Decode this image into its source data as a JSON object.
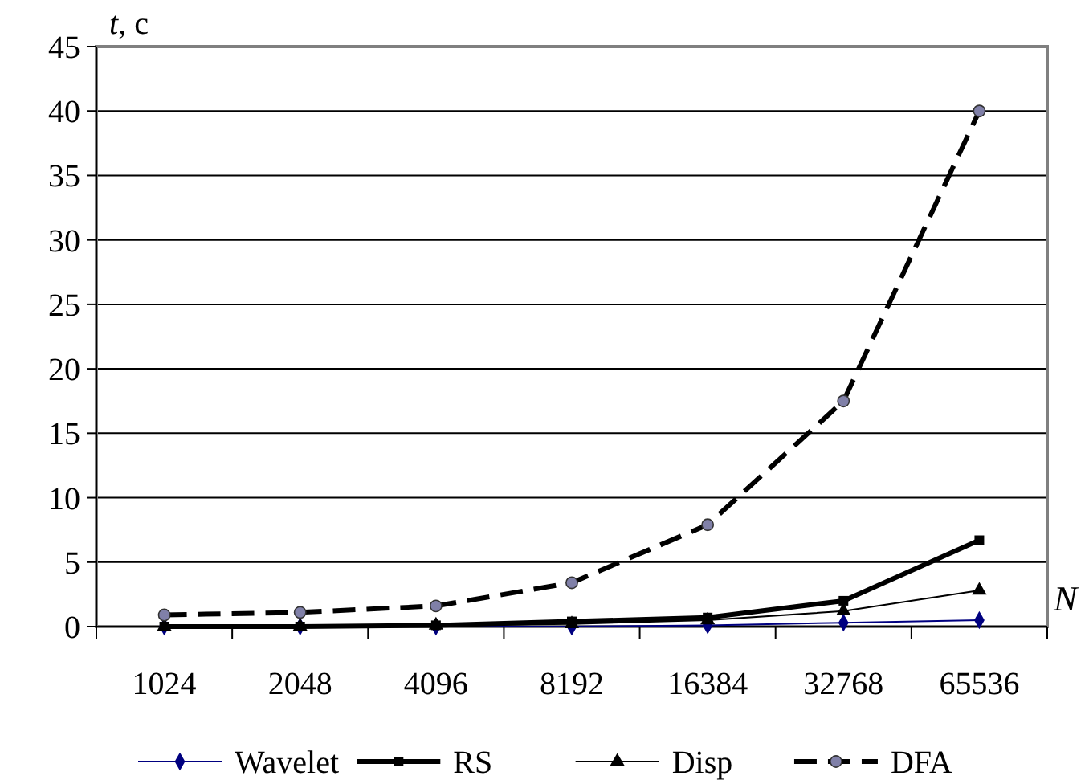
{
  "chart_data": {
    "type": "line",
    "ylabel": "t, c",
    "xlabel": "N",
    "categories": [
      "1024",
      "2048",
      "4096",
      "8192",
      "16384",
      "32768",
      "65536"
    ],
    "ylim": [
      0,
      45
    ],
    "yticks": [
      0,
      5,
      10,
      15,
      20,
      25,
      30,
      35,
      40,
      45
    ],
    "grid": "y",
    "legend": "bottom",
    "series": [
      {
        "name": "Wavelet",
        "color": "#000080",
        "marker": "diamond",
        "line_style": "solid",
        "values": [
          0,
          0,
          0,
          0,
          0.1,
          0.3,
          0.5
        ]
      },
      {
        "name": "RS",
        "color": "#000000",
        "marker": "square",
        "line_style": "solid",
        "values": [
          0,
          0,
          0.1,
          0.4,
          0.7,
          2.0,
          6.7
        ]
      },
      {
        "name": "Disp",
        "color": "#000000",
        "marker": "triangle",
        "line_style": "solid",
        "values": [
          0,
          0,
          0.1,
          0.2,
          0.5,
          1.2,
          2.8
        ]
      },
      {
        "name": "DFA",
        "color": "#000000",
        "marker": "circle",
        "line_style": "dashed",
        "values": [
          0.9,
          1.1,
          1.6,
          3.4,
          7.9,
          17.5,
          40
        ]
      }
    ]
  }
}
